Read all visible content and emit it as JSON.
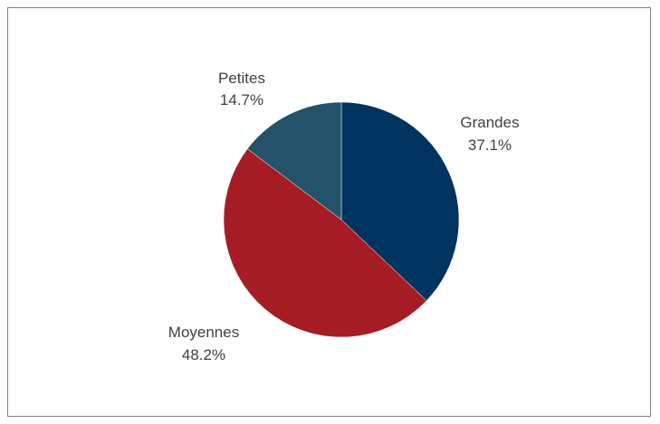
{
  "chart_data": {
    "type": "pie",
    "title": "",
    "slices": [
      {
        "label": "Grandes",
        "value": 37.1,
        "pct_text": "37.1%",
        "color": "#003360"
      },
      {
        "label": "Moyennes",
        "value": 48.2,
        "pct_text": "48.2%",
        "color": "#A51C24"
      },
      {
        "label": "Petites",
        "value": 14.7,
        "pct_text": "14.7%",
        "color": "#245369"
      }
    ],
    "start_angle": "12 o'clock",
    "direction": "clockwise",
    "legend": "none",
    "label_position": "outside"
  }
}
